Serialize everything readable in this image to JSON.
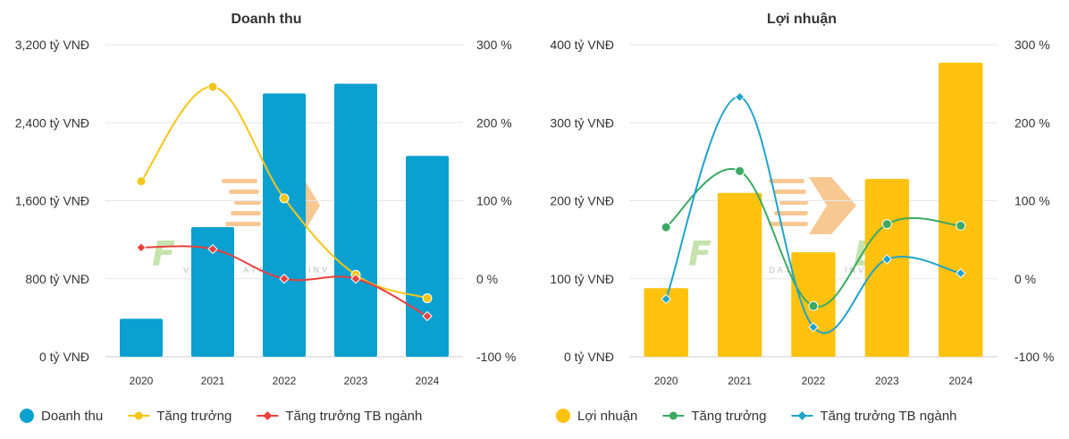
{
  "colors": {
    "revenue_bar": "#0aa0d0",
    "profit_bar": "#ffc20e",
    "growth_yellow": "#f5c518",
    "industry_red": "#e8403c",
    "growth_green": "#3aaa62",
    "industry_blue": "#1fa3cc"
  },
  "chart_data": [
    {
      "type": "bar",
      "title": "Doanh thu",
      "categories": [
        "2020",
        "2021",
        "2022",
        "2023",
        "2024"
      ],
      "ylim": [
        0,
        3200
      ],
      "y_ticks": [
        0,
        800,
        1600,
        2400,
        3200
      ],
      "y_tick_labels": [
        "0 tỷ VNĐ",
        "800 tỷ VNĐ",
        "1,600 tỷ VNĐ",
        "2,400 tỷ VNĐ",
        "3,200 tỷ VNĐ"
      ],
      "y2lim": [
        -100,
        300
      ],
      "y2_ticks": [
        -100,
        0,
        100,
        200,
        300
      ],
      "y2_tick_labels": [
        "-100 %",
        "0 %",
        "100 %",
        "200 %",
        "300 %"
      ],
      "grid": true,
      "legend": "bottom-left",
      "series": [
        {
          "name": "Doanh thu",
          "kind": "bar",
          "axis": "left",
          "color": "#0aa0d0",
          "values": [
            390,
            1330,
            2700,
            2800,
            2060
          ]
        },
        {
          "name": "Tăng trưởng",
          "kind": "line",
          "marker": "circle",
          "axis": "right",
          "color": "#f5c518",
          "values": [
            125,
            246,
            103,
            5,
            -25
          ]
        },
        {
          "name": "Tăng trưởng TB ngành",
          "kind": "line",
          "marker": "diamond",
          "axis": "right",
          "color": "#e8403c",
          "values": [
            40,
            38,
            0,
            0,
            -48
          ]
        }
      ]
    },
    {
      "type": "bar",
      "title": "Lợi nhuận",
      "categories": [
        "2020",
        "2021",
        "2022",
        "2023",
        "2024"
      ],
      "ylim": [
        0,
        400
      ],
      "y_ticks": [
        0,
        100,
        200,
        300,
        400
      ],
      "y_tick_labels": [
        "0 tỷ VNĐ",
        "100 tỷ VNĐ",
        "200 tỷ VNĐ",
        "300 tỷ VNĐ",
        "400 tỷ VNĐ"
      ],
      "y2lim": [
        -100,
        300
      ],
      "y2_ticks": [
        -100,
        0,
        100,
        200,
        300
      ],
      "y2_tick_labels": [
        "-100 %",
        "0 %",
        "100 %",
        "200 %",
        "300 %"
      ],
      "grid": true,
      "legend": "bottom-left",
      "series": [
        {
          "name": "Lợi nhuận",
          "kind": "bar",
          "axis": "left",
          "color": "#ffc20e",
          "values": [
            88,
            210,
            134,
            228,
            377
          ]
        },
        {
          "name": "Tăng trưởng",
          "kind": "line",
          "marker": "circle",
          "axis": "right",
          "color": "#3aaa62",
          "values": [
            66,
            138,
            -35,
            70,
            68
          ]
        },
        {
          "name": "Tăng trưởng TB ngành",
          "kind": "line",
          "marker": "diamond",
          "axis": "right",
          "color": "#1fa3cc",
          "values": [
            -26,
            233,
            -62,
            25,
            7
          ]
        }
      ]
    }
  ]
}
